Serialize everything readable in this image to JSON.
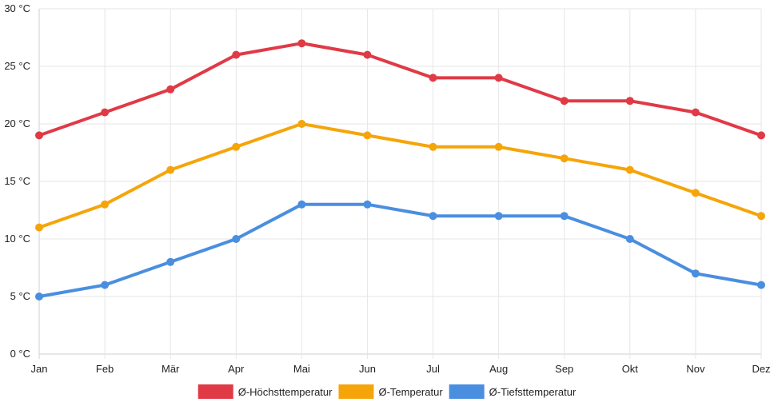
{
  "chart_data": {
    "type": "line",
    "title": "",
    "xlabel": "",
    "ylabel": "",
    "categories": [
      "Jan",
      "Feb",
      "Mär",
      "Apr",
      "Mai",
      "Jun",
      "Jul",
      "Aug",
      "Sep",
      "Okt",
      "Nov",
      "Dez"
    ],
    "ylim": [
      0,
      30
    ],
    "y_ticks": [
      0,
      5,
      10,
      15,
      20,
      25,
      30
    ],
    "y_tick_labels": [
      "0 °C",
      "5 °C",
      "10 °C",
      "15 °C",
      "20 °C",
      "25 °C",
      "30 °C"
    ],
    "grid": true,
    "legend_position": "bottom",
    "series": [
      {
        "name": "Ø-Höchsttemperatur",
        "color": "#e03a46",
        "values": [
          19,
          21,
          23,
          26,
          27,
          26,
          24,
          24,
          22,
          22,
          21,
          19
        ]
      },
      {
        "name": "Ø-Temperatur",
        "color": "#f5a50a",
        "values": [
          11,
          13,
          16,
          18,
          20,
          19,
          18,
          18,
          17,
          16,
          14,
          12
        ]
      },
      {
        "name": "Ø-Tiefsttemperatur",
        "color": "#4a8ee0",
        "values": [
          5,
          6,
          8,
          10,
          13,
          13,
          12,
          12,
          12,
          10,
          7,
          6
        ]
      }
    ]
  }
}
